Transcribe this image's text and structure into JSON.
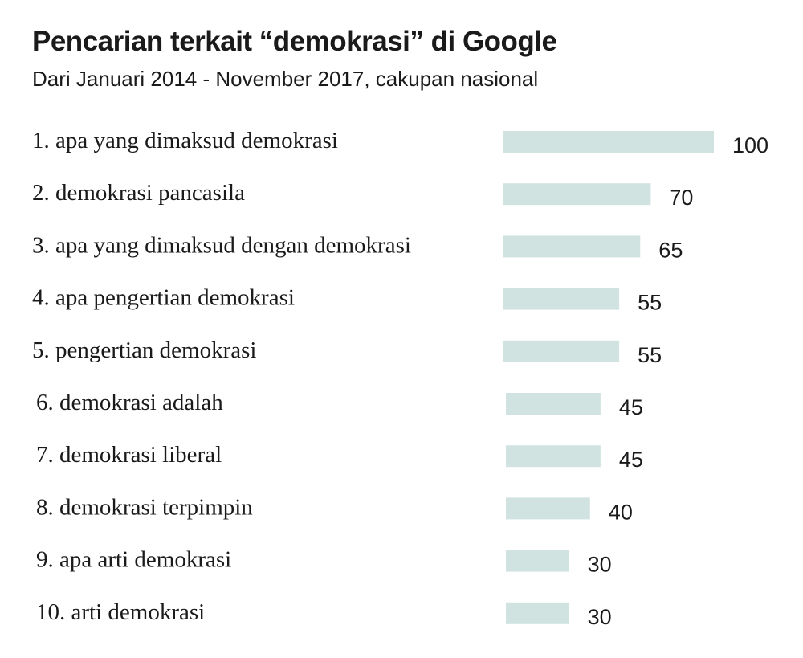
{
  "chart_data": {
    "type": "bar",
    "orientation": "horizontal",
    "title": "Pencarian terkait “demokrasi” di Google",
    "subtitle": "Dari Januari 2014 - November 2017, cakupan nasional",
    "categories": [
      "1. apa yang dimaksud demokrasi",
      "2. demokrasi pancasila",
      "3. apa yang dimaksud dengan demokrasi",
      "4. apa pengertian demokrasi",
      "5. pengertian demokrasi",
      "6. demokrasi adalah",
      "7. demokrasi liberal",
      "8. demokrasi terpimpin",
      "9. apa arti demokrasi",
      "10. arti demokrasi"
    ],
    "values": [
      100,
      70,
      65,
      55,
      55,
      45,
      45,
      40,
      30,
      30
    ],
    "xlim": [
      0,
      100
    ],
    "grid": false,
    "legend": "none",
    "bar_color": "#d1e3e1",
    "text_color": "#1a1a1a"
  }
}
